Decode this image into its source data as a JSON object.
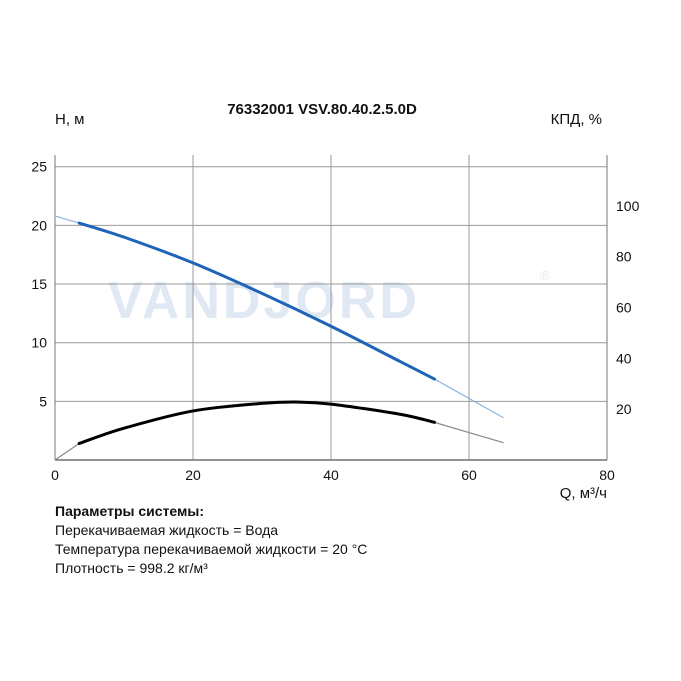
{
  "chart_data": {
    "type": "line",
    "title": "76332001 VSV.80.40.2.5.0D",
    "watermark": "VANDJORD",
    "watermark_mark": "®",
    "xlabel": "Q, м³/ч",
    "ylabel_left": "H, м",
    "ylabel_right": "КПД, %",
    "xlim": [
      0,
      80
    ],
    "ylim_left": [
      0,
      26
    ],
    "ylim_right": [
      0,
      120
    ],
    "x_ticks": [
      0,
      20,
      40,
      60,
      80
    ],
    "y_ticks_left": [
      5,
      10,
      15,
      20,
      25
    ],
    "y_ticks_right": [
      20,
      40,
      60,
      80,
      100
    ],
    "grid": true,
    "colors": {
      "head": "#1f64b9",
      "head_ext": "#8fb4e0",
      "eff": "#000000",
      "eff_ext": "#888888",
      "grid": "#9a9a9a"
    },
    "series": [
      {
        "key": "head",
        "axis": "left",
        "x": [
          3.5,
          10,
          20,
          30,
          40,
          50,
          55
        ],
        "y": [
          20.2,
          19.0,
          16.8,
          14.2,
          11.4,
          8.4,
          6.9
        ],
        "ext_before": {
          "x": [
            0,
            3.5
          ],
          "y": [
            20.8,
            20.2
          ]
        },
        "ext_after": {
          "x": [
            55,
            65
          ],
          "y": [
            6.9,
            3.6
          ]
        }
      },
      {
        "key": "efficiency",
        "axis": "right",
        "x": [
          3.5,
          10,
          20,
          30,
          35,
          40,
          50,
          55
        ],
        "y": [
          6.5,
          12.5,
          19.3,
          22.3,
          22.8,
          22.0,
          18.0,
          14.8
        ],
        "ext_before": {
          "x": [
            0,
            3.5
          ],
          "y": [
            0,
            6.5
          ]
        },
        "ext_after": {
          "x": [
            55,
            65
          ],
          "y": [
            14.8,
            6.8
          ]
        }
      }
    ]
  },
  "params": {
    "heading": "Параметры системы:",
    "lines": [
      "Перекачиваемая жидкость = Вода",
      "Температура перекачиваемой жидкости = 20 °C",
      "Плотность = 998.2 кг/м³"
    ]
  }
}
